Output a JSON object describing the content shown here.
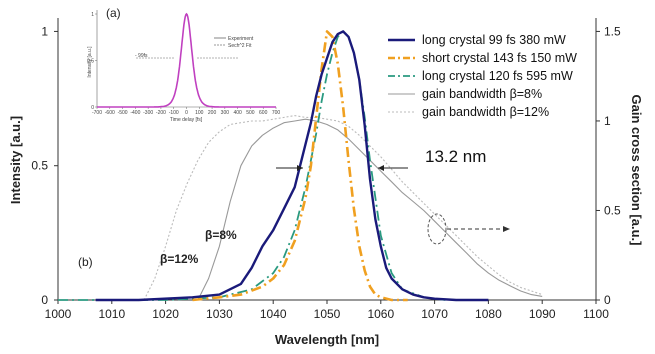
{
  "chart_data": {
    "type": "line",
    "xlabel": "Wavelength [nm]",
    "ylabel": "Intensity [a.u.]",
    "y2label": "Gain cross section [a.u.]",
    "xlim": [
      1000,
      1100
    ],
    "ylim": [
      0,
      1.05
    ],
    "y2lim": [
      0,
      1.575
    ],
    "xticks": [
      "1000",
      "1010",
      "1020",
      "1030",
      "1040",
      "1050",
      "1060",
      "1070",
      "1080",
      "1090",
      "1100"
    ],
    "yticks": [
      "0",
      "0.5",
      "1"
    ],
    "y2ticks": [
      "0",
      "0.5",
      "1",
      "1.5"
    ],
    "grid": false,
    "legend_position": "top-right",
    "series": [
      {
        "name": "long crystal 99 fs 380 mW",
        "color": "#1a1a7a",
        "style": "solid",
        "axis": "left",
        "x": [
          1007,
          1015,
          1025,
          1030,
          1034,
          1036,
          1038,
          1040,
          1042,
          1044,
          1046,
          1047,
          1048,
          1049,
          1050,
          1051,
          1052,
          1053,
          1054,
          1055,
          1056,
          1057,
          1058,
          1059,
          1060,
          1061,
          1062,
          1064,
          1066,
          1068,
          1070,
          1074,
          1078,
          1080
        ],
        "y": [
          0.0,
          0.0,
          0.01,
          0.02,
          0.06,
          0.12,
          0.2,
          0.26,
          0.34,
          0.42,
          0.58,
          0.66,
          0.76,
          0.84,
          0.9,
          0.96,
          0.99,
          1.0,
          0.98,
          0.92,
          0.82,
          0.65,
          0.45,
          0.3,
          0.2,
          0.12,
          0.08,
          0.04,
          0.02,
          0.01,
          0.005,
          0.0,
          0.0,
          0.0
        ]
      },
      {
        "name": "short crystal 143 fs 150 mW",
        "color": "#f0a020",
        "style": "dashdot",
        "axis": "left",
        "x": [
          1025,
          1030,
          1034,
          1038,
          1040,
          1042,
          1044,
          1046,
          1047,
          1048,
          1049,
          1050,
          1051,
          1052,
          1053,
          1054,
          1055,
          1056,
          1057,
          1058,
          1059,
          1060,
          1062,
          1065
        ],
        "y": [
          0.0,
          0.01,
          0.02,
          0.05,
          0.08,
          0.13,
          0.22,
          0.38,
          0.5,
          0.68,
          0.86,
          1.0,
          0.98,
          0.88,
          0.72,
          0.52,
          0.34,
          0.2,
          0.11,
          0.05,
          0.02,
          0.01,
          0.0,
          0.0
        ]
      },
      {
        "name": "long crystal 120 fs 595 mW",
        "color": "#2a9a80",
        "style": "dashdot",
        "axis": "left",
        "x": [
          1000,
          1020,
          1030,
          1036,
          1040,
          1042,
          1044,
          1046,
          1047,
          1048,
          1049,
          1050,
          1051,
          1052,
          1053,
          1054,
          1055,
          1056,
          1057,
          1058,
          1060,
          1062,
          1064,
          1068,
          1072
        ],
        "y": [
          0.0,
          0.0,
          0.01,
          0.04,
          0.1,
          0.16,
          0.26,
          0.42,
          0.52,
          0.62,
          0.74,
          0.84,
          0.92,
          0.98,
          1.0,
          0.98,
          0.92,
          0.82,
          0.68,
          0.52,
          0.24,
          0.1,
          0.04,
          0.01,
          0.0
        ]
      },
      {
        "name": "gain bandwidth β=8%",
        "color": "#999999",
        "style": "solid",
        "axis": "right",
        "x": [
          1026,
          1028,
          1030,
          1032,
          1034,
          1036,
          1038,
          1040,
          1042,
          1044,
          1046,
          1048,
          1050,
          1052,
          1054,
          1056,
          1058,
          1060,
          1062,
          1064,
          1066,
          1068,
          1070,
          1072,
          1074,
          1076,
          1078,
          1080,
          1082,
          1084,
          1086,
          1088,
          1090
        ],
        "y": [
          0.0,
          0.12,
          0.3,
          0.55,
          0.75,
          0.86,
          0.92,
          0.96,
          0.99,
          1.0,
          1.01,
          1.0,
          0.98,
          0.95,
          0.9,
          0.84,
          0.78,
          0.72,
          0.66,
          0.6,
          0.55,
          0.5,
          0.44,
          0.38,
          0.32,
          0.26,
          0.2,
          0.15,
          0.11,
          0.08,
          0.05,
          0.03,
          0.02
        ]
      },
      {
        "name": "gain bandwidth β=12%",
        "color": "#bbbbbb",
        "style": "dotted",
        "axis": "right",
        "x": [
          1016,
          1018,
          1020,
          1022,
          1024,
          1026,
          1028,
          1030,
          1032,
          1034,
          1036,
          1038,
          1040,
          1042,
          1044,
          1046,
          1048,
          1050,
          1052,
          1054,
          1056,
          1058,
          1060,
          1062,
          1064,
          1066,
          1068,
          1070,
          1072,
          1074,
          1076,
          1078,
          1080,
          1082,
          1084,
          1086,
          1088,
          1090
        ],
        "y": [
          0.0,
          0.12,
          0.3,
          0.5,
          0.65,
          0.78,
          0.88,
          0.94,
          0.98,
          0.99,
          1.0,
          1.0,
          1.01,
          1.02,
          1.03,
          1.02,
          1.02,
          1.01,
          1.0,
          0.97,
          0.92,
          0.86,
          0.8,
          0.73,
          0.66,
          0.6,
          0.54,
          0.48,
          0.42,
          0.36,
          0.3,
          0.24,
          0.19,
          0.14,
          0.1,
          0.07,
          0.05,
          0.03
        ]
      }
    ],
    "annotations": {
      "fwhm": "13.2 nm",
      "beta8": "β=8%",
      "beta12": "β=12%",
      "panel_b": "(b)"
    },
    "inset": {
      "label": "(a)",
      "xlabel": "Time delay [fs]",
      "ylabel": "Intensity [a.u.]",
      "xticks": [
        "-700",
        "-600",
        "-500",
        "-400",
        "-300",
        "-200",
        "-100",
        "0",
        "100",
        "200",
        "300",
        "400",
        "500",
        "600",
        "700"
      ],
      "yticks": [
        "0",
        "0.5",
        "1"
      ],
      "fwhm_label": "- 99fs",
      "legend": [
        "Experiment",
        "Sech^2 Fit"
      ]
    }
  }
}
